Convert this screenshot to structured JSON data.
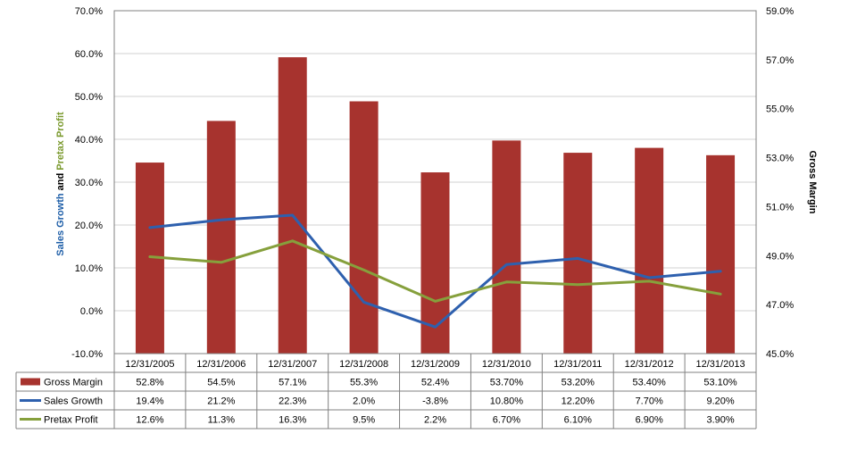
{
  "chart_data": {
    "type": "bar+line",
    "categories": [
      "12/31/2005",
      "12/31/2006",
      "12/31/2007",
      "12/31/2008",
      "12/31/2009",
      "12/31/2010",
      "12/31/2011",
      "12/31/2012",
      "12/31/2013"
    ],
    "left_axis": {
      "label_parts": [
        {
          "text": "Sales Growth",
          "color": "#1F5FA8"
        },
        {
          "text": " and ",
          "color": "#000000"
        },
        {
          "text": "Pretax Profit",
          "color": "#7B9A2F"
        }
      ],
      "ylim": [
        -10,
        70
      ],
      "ticks": [
        -10,
        0,
        10,
        20,
        30,
        40,
        50,
        60,
        70
      ],
      "tick_labels": [
        "-10.0%",
        "0.0%",
        "10.0%",
        "20.0%",
        "30.0%",
        "40.0%",
        "50.0%",
        "60.0%",
        "70.0%"
      ]
    },
    "right_axis": {
      "label": "Gross Margin",
      "label_color": "#C0141C",
      "ylim": [
        45,
        59
      ],
      "ticks": [
        45,
        47,
        49,
        51,
        53,
        55,
        57,
        59
      ],
      "tick_labels": [
        "45.0%",
        "47.0%",
        "49.0%",
        "51.0%",
        "53.0%",
        "55.0%",
        "57.0%",
        "59.0%"
      ]
    },
    "series": [
      {
        "name": "Gross Margin",
        "kind": "bar",
        "axis": "right",
        "color": "#A7332E",
        "values": [
          52.8,
          54.5,
          57.1,
          55.3,
          52.4,
          53.7,
          53.2,
          53.4,
          53.1
        ],
        "labels": [
          "52.8%",
          "54.5%",
          "57.1%",
          "55.3%",
          "52.4%",
          "53.70%",
          "53.20%",
          "53.40%",
          "53.10%"
        ]
      },
      {
        "name": "Sales Growth",
        "kind": "line",
        "axis": "left",
        "color": "#2E60AE",
        "values": [
          19.4,
          21.2,
          22.3,
          2.0,
          -3.8,
          10.8,
          12.2,
          7.7,
          9.2
        ],
        "labels": [
          "19.4%",
          "21.2%",
          "22.3%",
          "2.0%",
          "-3.8%",
          "10.80%",
          "12.20%",
          "7.70%",
          "9.20%"
        ]
      },
      {
        "name": "Pretax Profit",
        "kind": "line",
        "axis": "left",
        "color": "#86A03C",
        "values": [
          12.6,
          11.3,
          16.3,
          9.5,
          2.2,
          6.7,
          6.1,
          6.9,
          3.9
        ],
        "labels": [
          "12.6%",
          "11.3%",
          "16.3%",
          "9.5%",
          "2.2%",
          "6.70%",
          "6.10%",
          "6.90%",
          "3.90%"
        ]
      }
    ],
    "gridlines": true,
    "legend": "data table below chart"
  }
}
